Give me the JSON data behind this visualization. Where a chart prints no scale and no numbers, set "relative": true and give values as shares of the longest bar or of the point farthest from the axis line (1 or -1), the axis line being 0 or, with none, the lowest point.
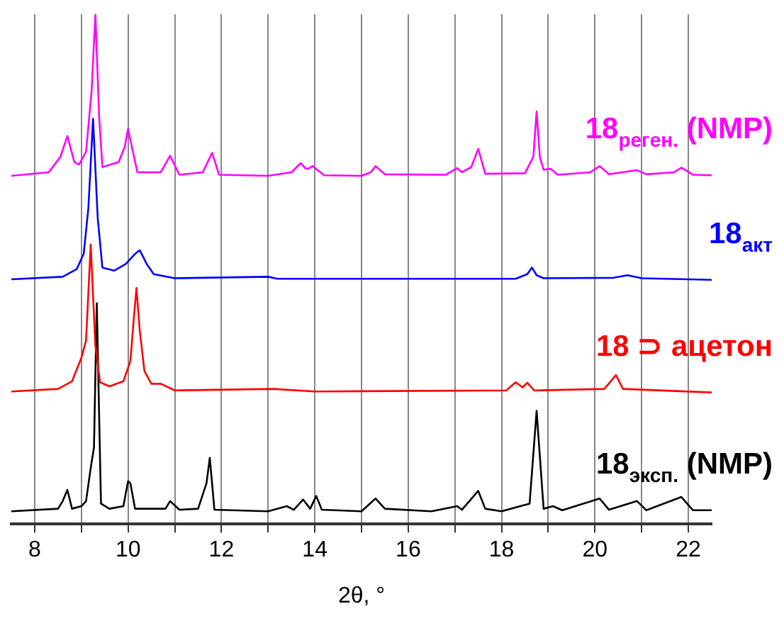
{
  "chart_data": {
    "type": "line",
    "relative": true,
    "xlabel": "2θ, °",
    "grid": "x",
    "legend": false,
    "marker": "none",
    "line_style": "solid",
    "xlim": [
      7.5,
      22.5
    ],
    "xticks": [
      8,
      {
        "value": 9,
        "label": null
      },
      10,
      {
        "value": 11,
        "label": null
      },
      12,
      {
        "value": 13,
        "label": null
      },
      14,
      {
        "value": 15,
        "label": null
      },
      16,
      {
        "value": 17,
        "label": null
      },
      18,
      {
        "value": 19,
        "label": null
      },
      20,
      {
        "value": 21,
        "label": null
      },
      22
    ],
    "series": [
      {
        "name": "18$_{реген.}$ (NMP)",
        "color": "#ff00ff",
        "x": [
          7.5,
          8.3,
          8.55,
          8.7,
          8.85,
          8.95,
          9.1,
          9.22,
          9.3,
          9.38,
          9.45,
          9.8,
          9.93,
          10.0,
          10.08,
          10.2,
          10.7,
          10.9,
          11.1,
          11.6,
          11.8,
          11.95,
          13.0,
          13.5,
          13.7,
          13.8,
          13.87,
          13.95,
          14.2,
          15.0,
          15.2,
          15.3,
          15.5,
          16.8,
          17.05,
          17.15,
          17.35,
          17.5,
          17.65,
          18.5,
          18.68,
          18.75,
          18.82,
          18.9,
          19.05,
          19.2,
          19.9,
          20.1,
          20.3,
          20.9,
          21.1,
          21.7,
          21.85,
          22.1,
          22.5
        ],
        "values": [
          0.683,
          0.69,
          0.72,
          0.761,
          0.71,
          0.705,
          0.73,
          0.85,
          1.0,
          0.8,
          0.7,
          0.71,
          0.74,
          0.775,
          0.74,
          0.69,
          0.69,
          0.722,
          0.685,
          0.69,
          0.728,
          0.685,
          0.683,
          0.69,
          0.708,
          0.697,
          0.697,
          0.702,
          0.684,
          0.683,
          0.69,
          0.702,
          0.686,
          0.685,
          0.698,
          0.69,
          0.7,
          0.736,
          0.687,
          0.688,
          0.72,
          0.809,
          0.72,
          0.695,
          0.697,
          0.685,
          0.69,
          0.702,
          0.686,
          0.694,
          0.686,
          0.69,
          0.699,
          0.685,
          0.684
        ]
      },
      {
        "name": "18$_{акт}$",
        "color": "#0000ff",
        "x": [
          7.5,
          8.6,
          8.9,
          9.05,
          9.15,
          9.25,
          9.35,
          9.45,
          9.7,
          9.95,
          10.15,
          10.25,
          10.4,
          10.55,
          11.0,
          13.0,
          13.2,
          18.3,
          18.55,
          18.65,
          18.75,
          18.9,
          20.4,
          20.7,
          21.0,
          22.5
        ],
        "values": [
          0.48,
          0.485,
          0.5,
          0.53,
          0.62,
          0.795,
          0.6,
          0.503,
          0.497,
          0.51,
          0.53,
          0.537,
          0.51,
          0.49,
          0.482,
          0.485,
          0.481,
          0.481,
          0.49,
          0.503,
          0.488,
          0.482,
          0.483,
          0.488,
          0.482,
          0.479
        ]
      },
      {
        "name": "18 ⊃ ацетон",
        "color": "#ff0000",
        "x": [
          7.5,
          8.5,
          8.8,
          9.0,
          9.1,
          9.2,
          9.3,
          9.4,
          9.6,
          9.9,
          10.05,
          10.12,
          10.18,
          10.25,
          10.35,
          10.5,
          10.7,
          11.0,
          13.1,
          14.0,
          18.1,
          18.3,
          18.45,
          18.55,
          18.7,
          20.2,
          20.45,
          20.6,
          22.5
        ],
        "values": [
          0.26,
          0.265,
          0.28,
          0.326,
          0.36,
          0.548,
          0.35,
          0.278,
          0.27,
          0.28,
          0.32,
          0.4,
          0.463,
          0.38,
          0.3,
          0.275,
          0.275,
          0.262,
          0.265,
          0.26,
          0.262,
          0.278,
          0.268,
          0.277,
          0.262,
          0.265,
          0.292,
          0.265,
          0.258
        ]
      },
      {
        "name": "18$_{эксп.}$ (NMP)",
        "color": "#000000",
        "x": [
          7.5,
          8.5,
          8.6,
          8.7,
          8.8,
          9.0,
          9.1,
          9.2,
          9.27,
          9.33,
          9.42,
          9.6,
          9.9,
          10.0,
          10.05,
          10.15,
          10.8,
          10.9,
          11.1,
          11.5,
          11.68,
          11.75,
          11.85,
          13.0,
          13.4,
          13.55,
          13.75,
          13.9,
          14.03,
          14.15,
          15.0,
          15.3,
          15.5,
          16.5,
          17.05,
          17.15,
          17.5,
          17.65,
          18.0,
          18.4,
          18.6,
          18.75,
          18.9,
          19.1,
          19.3,
          20.1,
          20.3,
          20.9,
          21.1,
          21.85,
          22.1,
          22.5
        ],
        "values": [
          0.025,
          0.03,
          0.045,
          0.067,
          0.03,
          0.035,
          0.045,
          0.11,
          0.15,
          0.433,
          0.04,
          0.03,
          0.035,
          0.084,
          0.08,
          0.03,
          0.03,
          0.045,
          0.028,
          0.03,
          0.08,
          0.13,
          0.028,
          0.025,
          0.035,
          0.028,
          0.048,
          0.03,
          0.055,
          0.028,
          0.025,
          0.05,
          0.03,
          0.025,
          0.035,
          0.028,
          0.065,
          0.03,
          0.025,
          0.035,
          0.04,
          0.222,
          0.03,
          0.035,
          0.027,
          0.05,
          0.028,
          0.045,
          0.027,
          0.053,
          0.027,
          0.027
        ]
      }
    ]
  }
}
